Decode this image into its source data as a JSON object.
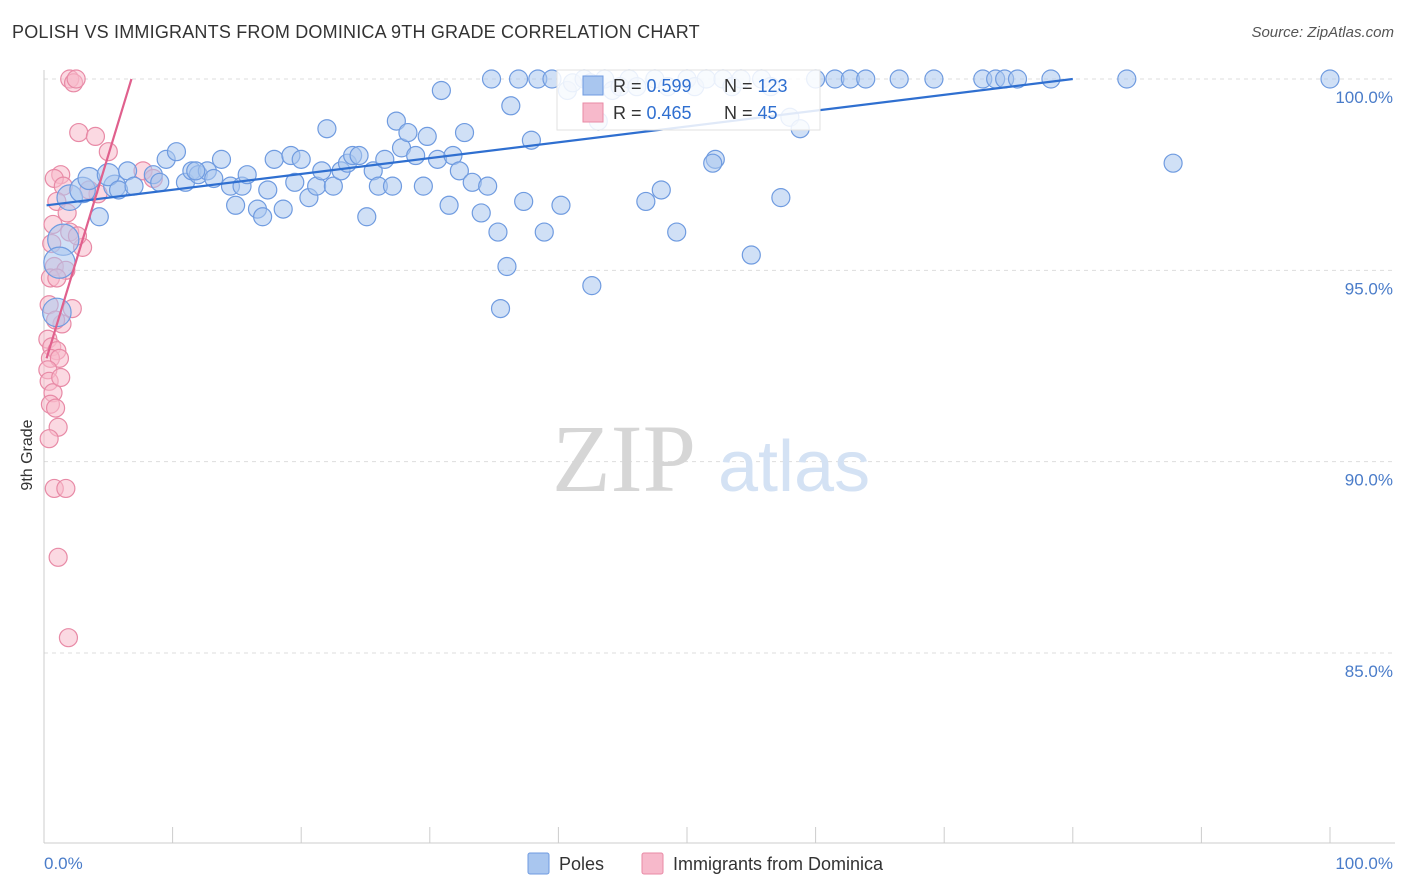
{
  "title": "POLISH VS IMMIGRANTS FROM DOMINICA 9TH GRADE CORRELATION CHART",
  "source": "Source: ZipAtlas.com",
  "watermark": {
    "part1": "ZIP",
    "part2": "atlas"
  },
  "colors": {
    "blue_fill": "#a9c6ef",
    "blue_stroke": "#6f9be0",
    "blue_line": "#2f6fd0",
    "pink_fill": "#f7b9cb",
    "pink_stroke": "#e88aa6",
    "pink_line": "#e0608d",
    "tick_text": "#4a7cc9",
    "grid": "#dddddd"
  },
  "legend": {
    "rows": [
      {
        "r_label": "R = ",
        "r_value": "0.599",
        "n_label": "N = ",
        "n_value": "123"
      },
      {
        "r_label": "R = ",
        "r_value": "0.465",
        "n_label": "N = ",
        "n_value": "45"
      }
    ]
  },
  "chart_data": {
    "type": "scatter",
    "title": "POLISH VS IMMIGRANTS FROM DOMINICA 9TH GRADE CORRELATION CHART",
    "xlabel": "",
    "ylabel": "9th Grade",
    "xlim": [
      0,
      100
    ],
    "ylim": [
      80.5,
      100.5
    ],
    "x_tick_labels": [
      "0.0%",
      "100.0%"
    ],
    "y_ticks": [
      {
        "value": 100,
        "label": "100.0%"
      },
      {
        "value": 95,
        "label": "95.0%"
      },
      {
        "value": 90,
        "label": "90.0%"
      },
      {
        "value": 85,
        "label": "85.0%"
      }
    ],
    "grid": true,
    "legend_position": "bottom",
    "series": [
      {
        "name": "Poles",
        "r": 0.599,
        "n": 123,
        "trend": {
          "x": [
            0.2,
            80
          ],
          "y": [
            96.7,
            100.0
          ]
        },
        "points": [
          {
            "x": 1.5,
            "y": 95.8,
            "s": 3
          },
          {
            "x": 1.2,
            "y": 95.2,
            "s": 3
          },
          {
            "x": 1.0,
            "y": 93.9,
            "s": 2.5
          },
          {
            "x": 2.0,
            "y": 96.9,
            "s": 2
          },
          {
            "x": 3.0,
            "y": 97.1,
            "s": 2
          },
          {
            "x": 3.5,
            "y": 97.4,
            "s": 1.5
          },
          {
            "x": 5.5,
            "y": 97.2,
            "s": 1.5
          },
          {
            "x": 5.0,
            "y": 97.5,
            "s": 1.5
          },
          {
            "x": 5.8,
            "y": 97.1,
            "s": 1
          },
          {
            "x": 4.3,
            "y": 96.4,
            "s": 1
          },
          {
            "x": 6.5,
            "y": 97.6,
            "s": 1
          },
          {
            "x": 8.5,
            "y": 97.5,
            "s": 1
          },
          {
            "x": 9.5,
            "y": 97.9,
            "s": 1
          },
          {
            "x": 10.3,
            "y": 98.1,
            "s": 1
          },
          {
            "x": 11.0,
            "y": 97.3,
            "s": 1
          },
          {
            "x": 11.5,
            "y": 97.6,
            "s": 1
          },
          {
            "x": 12.0,
            "y": 97.5,
            "s": 1
          },
          {
            "x": 12.7,
            "y": 97.6,
            "s": 1
          },
          {
            "x": 13.2,
            "y": 97.4,
            "s": 1
          },
          {
            "x": 13.8,
            "y": 97.9,
            "s": 1
          },
          {
            "x": 14.5,
            "y": 97.2,
            "s": 1
          },
          {
            "x": 14.9,
            "y": 96.7,
            "s": 1
          },
          {
            "x": 15.4,
            "y": 97.2,
            "s": 1
          },
          {
            "x": 15.8,
            "y": 97.5,
            "s": 1
          },
          {
            "x": 16.6,
            "y": 96.6,
            "s": 1
          },
          {
            "x": 17.0,
            "y": 96.4,
            "s": 1
          },
          {
            "x": 17.4,
            "y": 97.1,
            "s": 1
          },
          {
            "x": 17.9,
            "y": 97.9,
            "s": 1
          },
          {
            "x": 18.6,
            "y": 96.6,
            "s": 1
          },
          {
            "x": 19.2,
            "y": 98.0,
            "s": 1
          },
          {
            "x": 19.5,
            "y": 97.3,
            "s": 1
          },
          {
            "x": 20.0,
            "y": 97.9,
            "s": 1
          },
          {
            "x": 20.6,
            "y": 96.9,
            "s": 1
          },
          {
            "x": 21.2,
            "y": 97.2,
            "s": 1
          },
          {
            "x": 21.6,
            "y": 97.6,
            "s": 1
          },
          {
            "x": 22.0,
            "y": 98.7,
            "s": 1
          },
          {
            "x": 22.5,
            "y": 97.2,
            "s": 1
          },
          {
            "x": 23.1,
            "y": 97.6,
            "s": 1
          },
          {
            "x": 23.6,
            "y": 97.8,
            "s": 1
          },
          {
            "x": 24.0,
            "y": 98.0,
            "s": 1
          },
          {
            "x": 24.5,
            "y": 98.0,
            "s": 1
          },
          {
            "x": 25.1,
            "y": 96.4,
            "s": 1
          },
          {
            "x": 25.6,
            "y": 97.6,
            "s": 1
          },
          {
            "x": 26.0,
            "y": 97.2,
            "s": 1
          },
          {
            "x": 26.5,
            "y": 97.9,
            "s": 1
          },
          {
            "x": 27.1,
            "y": 97.2,
            "s": 1
          },
          {
            "x": 27.4,
            "y": 98.9,
            "s": 1
          },
          {
            "x": 27.8,
            "y": 98.2,
            "s": 1
          },
          {
            "x": 28.3,
            "y": 98.6,
            "s": 1
          },
          {
            "x": 28.9,
            "y": 98.0,
            "s": 1
          },
          {
            "x": 29.5,
            "y": 97.2,
            "s": 1
          },
          {
            "x": 29.8,
            "y": 98.5,
            "s": 1
          },
          {
            "x": 30.6,
            "y": 97.9,
            "s": 1
          },
          {
            "x": 30.9,
            "y": 99.7,
            "s": 1
          },
          {
            "x": 31.5,
            "y": 96.7,
            "s": 1
          },
          {
            "x": 31.8,
            "y": 98.0,
            "s": 1
          },
          {
            "x": 32.3,
            "y": 97.6,
            "s": 1
          },
          {
            "x": 32.7,
            "y": 98.6,
            "s": 1
          },
          {
            "x": 33.3,
            "y": 97.3,
            "s": 1
          },
          {
            "x": 34.0,
            "y": 96.5,
            "s": 1
          },
          {
            "x": 34.5,
            "y": 97.2,
            "s": 1
          },
          {
            "x": 34.8,
            "y": 100.0,
            "s": 1
          },
          {
            "x": 35.3,
            "y": 96.0,
            "s": 1
          },
          {
            "x": 36.0,
            "y": 95.1,
            "s": 1
          },
          {
            "x": 36.3,
            "y": 99.3,
            "s": 1
          },
          {
            "x": 36.9,
            "y": 100.0,
            "s": 1
          },
          {
            "x": 37.3,
            "y": 96.8,
            "s": 1
          },
          {
            "x": 37.9,
            "y": 98.4,
            "s": 1
          },
          {
            "x": 38.4,
            "y": 100.0,
            "s": 1
          },
          {
            "x": 38.9,
            "y": 96.0,
            "s": 1
          },
          {
            "x": 39.5,
            "y": 100.0,
            "s": 1
          },
          {
            "x": 40.2,
            "y": 96.7,
            "s": 1
          },
          {
            "x": 40.7,
            "y": 99.7,
            "s": 1
          },
          {
            "x": 41.1,
            "y": 99.9,
            "s": 1
          },
          {
            "x": 42.0,
            "y": 100.0,
            "s": 1
          },
          {
            "x": 42.5,
            "y": 99.9,
            "s": 1
          },
          {
            "x": 43.1,
            "y": 98.9,
            "s": 1
          },
          {
            "x": 43.6,
            "y": 100.0,
            "s": 1
          },
          {
            "x": 44.2,
            "y": 99.7,
            "s": 1
          },
          {
            "x": 42.6,
            "y": 94.6,
            "s": 1
          },
          {
            "x": 35.5,
            "y": 94.0,
            "s": 1
          },
          {
            "x": 44.8,
            "y": 99.8,
            "s": 1
          },
          {
            "x": 45.5,
            "y": 100.0,
            "s": 1
          },
          {
            "x": 46.1,
            "y": 99.8,
            "s": 1
          },
          {
            "x": 46.8,
            "y": 96.8,
            "s": 1
          },
          {
            "x": 47.5,
            "y": 100.0,
            "s": 1
          },
          {
            "x": 48.0,
            "y": 97.1,
            "s": 1
          },
          {
            "x": 48.5,
            "y": 99.8,
            "s": 1
          },
          {
            "x": 49.2,
            "y": 96.0,
            "s": 1
          },
          {
            "x": 50.0,
            "y": 100.0,
            "s": 1
          },
          {
            "x": 50.6,
            "y": 99.8,
            "s": 1
          },
          {
            "x": 51.5,
            "y": 100.0,
            "s": 1
          },
          {
            "x": 52.2,
            "y": 97.9,
            "s": 1
          },
          {
            "x": 52.8,
            "y": 100.0,
            "s": 1
          },
          {
            "x": 53.5,
            "y": 99.8,
            "s": 1
          },
          {
            "x": 54.2,
            "y": 100.0,
            "s": 1
          },
          {
            "x": 55.0,
            "y": 95.4,
            "s": 1
          },
          {
            "x": 55.8,
            "y": 100.0,
            "s": 1
          },
          {
            "x": 56.5,
            "y": 99.8,
            "s": 1
          },
          {
            "x": 57.3,
            "y": 96.9,
            "s": 1
          },
          {
            "x": 58.0,
            "y": 99.0,
            "s": 1
          },
          {
            "x": 58.8,
            "y": 98.7,
            "s": 1
          },
          {
            "x": 60.0,
            "y": 100.0,
            "s": 1
          },
          {
            "x": 61.5,
            "y": 100.0,
            "s": 1
          },
          {
            "x": 62.7,
            "y": 100.0,
            "s": 1
          },
          {
            "x": 63.9,
            "y": 100.0,
            "s": 1
          },
          {
            "x": 66.5,
            "y": 100.0,
            "s": 1
          },
          {
            "x": 69.2,
            "y": 100.0,
            "s": 1
          },
          {
            "x": 73.0,
            "y": 100.0,
            "s": 1
          },
          {
            "x": 74.0,
            "y": 100.0,
            "s": 1
          },
          {
            "x": 74.7,
            "y": 100.0,
            "s": 1
          },
          {
            "x": 75.7,
            "y": 100.0,
            "s": 1
          },
          {
            "x": 78.3,
            "y": 100.0,
            "s": 1
          },
          {
            "x": 84.2,
            "y": 100.0,
            "s": 1
          },
          {
            "x": 87.8,
            "y": 97.8,
            "s": 1
          },
          {
            "x": 100.0,
            "y": 100.0,
            "s": 1
          },
          {
            "x": 52.0,
            "y": 97.8,
            "s": 1
          },
          {
            "x": 11.8,
            "y": 97.6,
            "s": 1
          },
          {
            "x": 7.0,
            "y": 97.2,
            "s": 1
          },
          {
            "x": 9.0,
            "y": 97.3,
            "s": 1
          }
        ]
      },
      {
        "name": "Immigrants from Dominica",
        "r": 0.465,
        "n": 45,
        "trend": {
          "x": [
            0.2,
            6.8
          ],
          "y": [
            92.7,
            100.0
          ]
        },
        "points": [
          {
            "x": 2.0,
            "y": 100.0,
            "s": 1
          },
          {
            "x": 2.3,
            "y": 99.9,
            "s": 1
          },
          {
            "x": 2.5,
            "y": 100.0,
            "s": 1
          },
          {
            "x": 2.7,
            "y": 98.6,
            "s": 1
          },
          {
            "x": 4.0,
            "y": 98.5,
            "s": 1
          },
          {
            "x": 5.0,
            "y": 98.1,
            "s": 1
          },
          {
            "x": 7.7,
            "y": 97.6,
            "s": 1
          },
          {
            "x": 8.5,
            "y": 97.4,
            "s": 1
          },
          {
            "x": 1.3,
            "y": 97.5,
            "s": 1
          },
          {
            "x": 0.8,
            "y": 97.4,
            "s": 1
          },
          {
            "x": 1.5,
            "y": 97.2,
            "s": 1
          },
          {
            "x": 4.2,
            "y": 97.0,
            "s": 1
          },
          {
            "x": 0.7,
            "y": 96.2,
            "s": 1
          },
          {
            "x": 0.6,
            "y": 95.7,
            "s": 1
          },
          {
            "x": 3.0,
            "y": 95.6,
            "s": 1
          },
          {
            "x": 2.0,
            "y": 96.0,
            "s": 1
          },
          {
            "x": 0.8,
            "y": 95.1,
            "s": 1
          },
          {
            "x": 1.7,
            "y": 95.0,
            "s": 1
          },
          {
            "x": 0.5,
            "y": 94.8,
            "s": 1
          },
          {
            "x": 1.0,
            "y": 94.8,
            "s": 1
          },
          {
            "x": 0.4,
            "y": 94.1,
            "s": 1
          },
          {
            "x": 2.2,
            "y": 94.0,
            "s": 1
          },
          {
            "x": 1.4,
            "y": 93.6,
            "s": 1
          },
          {
            "x": 0.3,
            "y": 93.2,
            "s": 1
          },
          {
            "x": 0.6,
            "y": 93.0,
            "s": 1
          },
          {
            "x": 1.0,
            "y": 92.9,
            "s": 1
          },
          {
            "x": 0.5,
            "y": 92.7,
            "s": 1
          },
          {
            "x": 1.2,
            "y": 92.7,
            "s": 1
          },
          {
            "x": 0.3,
            "y": 92.4,
            "s": 1
          },
          {
            "x": 0.4,
            "y": 92.1,
            "s": 1
          },
          {
            "x": 0.7,
            "y": 91.8,
            "s": 1
          },
          {
            "x": 0.5,
            "y": 91.5,
            "s": 1
          },
          {
            "x": 0.9,
            "y": 91.4,
            "s": 1
          },
          {
            "x": 1.1,
            "y": 90.9,
            "s": 1
          },
          {
            "x": 0.4,
            "y": 90.6,
            "s": 1
          },
          {
            "x": 0.8,
            "y": 89.3,
            "s": 1
          },
          {
            "x": 1.7,
            "y": 89.3,
            "s": 1
          },
          {
            "x": 1.1,
            "y": 87.5,
            "s": 1
          },
          {
            "x": 1.9,
            "y": 85.4,
            "s": 1
          },
          {
            "x": 1.0,
            "y": 96.8,
            "s": 1
          },
          {
            "x": 1.8,
            "y": 96.5,
            "s": 1
          },
          {
            "x": 2.6,
            "y": 95.9,
            "s": 1
          },
          {
            "x": 0.9,
            "y": 93.7,
            "s": 1
          },
          {
            "x": 1.3,
            "y": 92.2,
            "s": 1
          },
          {
            "x": 3.5,
            "y": 97.1,
            "s": 1
          }
        ]
      }
    ]
  }
}
